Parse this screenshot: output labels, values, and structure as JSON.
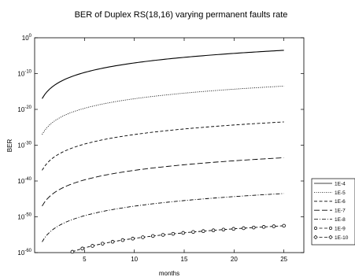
{
  "chart_data": {
    "type": "line",
    "title": "BER of Duplex RS(18,16) varying permanent faults rate",
    "xlabel": "months",
    "ylabel": "BER",
    "xlim": [
      0,
      27
    ],
    "ylim_exponent": [
      -60,
      0
    ],
    "y_scale": "log",
    "x_ticks": [
      5,
      10,
      15,
      20,
      25
    ],
    "y_tick_exponents": [
      0,
      -10,
      -20,
      -30,
      -40,
      -50,
      -60
    ],
    "y_tick_base": "10",
    "grid": false,
    "legend_position": "right",
    "series": [
      {
        "name": "1E-4",
        "style": "solid",
        "marker": "none",
        "y_exponent_start": -17,
        "y_exponent_end": -3.5
      },
      {
        "name": "1E-5",
        "style": "dotted",
        "marker": "none",
        "y_exponent_start": -27,
        "y_exponent_end": -13.5
      },
      {
        "name": "1E-6",
        "style": "dashed",
        "marker": "none",
        "y_exponent_start": -37,
        "y_exponent_end": -23.5
      },
      {
        "name": "1E-7",
        "style": "long-dashed",
        "marker": "none",
        "y_exponent_start": -47,
        "y_exponent_end": -33.5
      },
      {
        "name": "1E-8",
        "style": "dash-dot",
        "marker": "none",
        "y_exponent_start": -57,
        "y_exponent_end": -43.5
      },
      {
        "name": "1E-9",
        "style": "dashed",
        "marker": "circle",
        "y_exponent_start": -66,
        "y_exponent_end": -52.5
      },
      {
        "name": "1E-10",
        "style": "dashed",
        "marker": "diamond",
        "y_exponent_start": -76,
        "y_exponent_end": -62.5
      }
    ],
    "x_start": 0.75,
    "x_end": 25
  }
}
